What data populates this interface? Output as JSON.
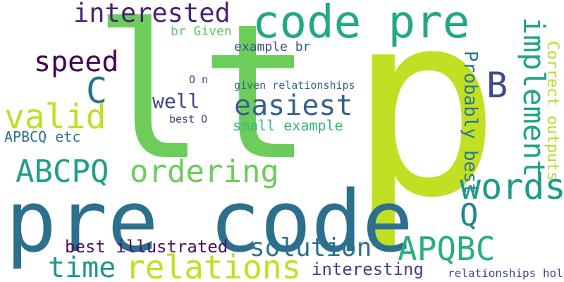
{
  "words": [
    {
      "text": "p",
      "color": "#c2df23"
    },
    {
      "text": "lt",
      "color": "#6ccd5a"
    },
    {
      "text": "pre code",
      "color": "#2d708e"
    },
    {
      "text": "code pre",
      "color": "#22a884"
    },
    {
      "text": "interested",
      "color": "#482475"
    },
    {
      "text": "speed",
      "color": "#440154"
    },
    {
      "text": "C",
      "color": "#2c728e"
    },
    {
      "text": "valid",
      "color": "#c2df23"
    },
    {
      "text": "easiest",
      "color": "#355f8d"
    },
    {
      "text": "well",
      "color": "#414487"
    },
    {
      "text": "B",
      "color": "#3e4a89"
    },
    {
      "text": "implement",
      "color": "#20a386"
    },
    {
      "text": "Probably best",
      "color": "#2a788e"
    },
    {
      "text": "Correct outputs",
      "color": "#b5de2b"
    },
    {
      "text": "ordering",
      "color": "#6ccd5a"
    },
    {
      "text": "ABCPQ",
      "color": "#1f9e89"
    },
    {
      "text": "words",
      "color": "#1f9a8a"
    },
    {
      "text": "Q",
      "color": "#25858e"
    },
    {
      "text": "APQBC",
      "color": "#29af7f"
    },
    {
      "text": "solution",
      "color": "#2c728e"
    },
    {
      "text": "relations",
      "color": "#c2df23"
    },
    {
      "text": "time",
      "color": "#1f968b"
    },
    {
      "text": "best illustrated",
      "color": "#471063"
    },
    {
      "text": "interesting",
      "color": "#433e85"
    },
    {
      "text": "relationships hold",
      "color": "#414487"
    },
    {
      "text": "br Given",
      "color": "#5ec962"
    },
    {
      "text": "example br",
      "color": "#39558c"
    },
    {
      "text": "O n",
      "color": "#3b528b"
    },
    {
      "text": "given relationships",
      "color": "#31688e"
    },
    {
      "text": "best O",
      "color": "#424086"
    },
    {
      "text": "small example",
      "color": "#35b779"
    },
    {
      "text": "APBCQ etc",
      "color": "#2d708e"
    }
  ]
}
